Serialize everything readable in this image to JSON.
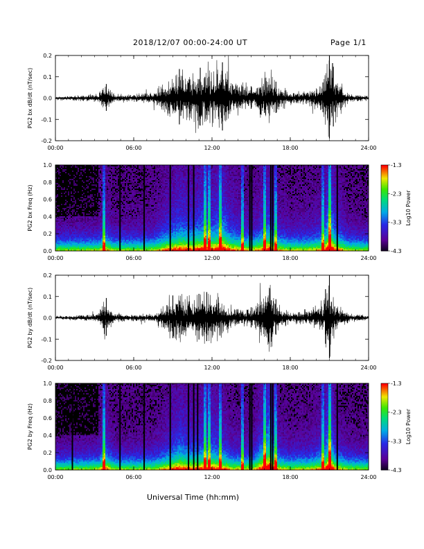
{
  "header": {
    "title": "2018/12/07  00:00-24:00 UT",
    "page": "Page 1/1"
  },
  "xaxis": {
    "label": "Universal Time (hh:mm)",
    "ticks": [
      "00:00",
      "06:00",
      "12:00",
      "18:00",
      "24:00"
    ]
  },
  "chart_data": [
    {
      "type": "line",
      "panel": "bx-dbdt",
      "ylabel": "PG2 bx dB/dt (nT/sec)",
      "ylim": [
        -0.2,
        0.2
      ],
      "yticks": [
        "0.2",
        "0.1",
        "0.0",
        "-0.1",
        "-0.2"
      ],
      "xlim_hours": [
        0,
        24
      ],
      "activity_envelope": {
        "x_hours": [
          0,
          1.5,
          3.3,
          3.8,
          4.5,
          6,
          7.5,
          8.5,
          9.5,
          10.5,
          11.2,
          12,
          12.8,
          13.5,
          14.5,
          15.2,
          16.4,
          17,
          18,
          19.5,
          20.5,
          21,
          21.5,
          22.5,
          24
        ],
        "amplitude": [
          0.01,
          0.012,
          0.02,
          0.07,
          0.02,
          0.018,
          0.03,
          0.09,
          0.13,
          0.11,
          0.14,
          0.12,
          0.16,
          0.09,
          0.06,
          0.05,
          0.14,
          0.06,
          0.03,
          0.04,
          0.07,
          0.2,
          0.1,
          0.02,
          0.012
        ]
      },
      "spikes_hours": [
        3.9,
        9.5,
        11.1,
        12.8,
        15.0,
        16.9,
        20.5,
        21.0,
        21.3
      ]
    },
    {
      "type": "heatmap",
      "panel": "bx-freq",
      "ylabel": "PG2 bx Freq (Hz)",
      "ylim": [
        0.0,
        1.0
      ],
      "yticks": [
        "1.0",
        "0.8",
        "0.6",
        "0.4",
        "0.2",
        "0.0"
      ],
      "colorbar": {
        "label": "Log10 Power",
        "range": [
          -4.3,
          -1.3
        ],
        "ticks": [
          "-1.3",
          "-2.3",
          "-3.3",
          "-4.3"
        ]
      },
      "bright_lines_hours": [
        3.7,
        11.5,
        11.8,
        12.6,
        14.3,
        16.0,
        16.9,
        20.5,
        21.0
      ],
      "gap_lines_hours": [
        4.95,
        6.8,
        8.8,
        10.2,
        10.6,
        14.9,
        15.05,
        16.5,
        16.65,
        21.6
      ]
    },
    {
      "type": "line",
      "panel": "by-dbdt",
      "ylabel": "PG2 by dB/dt (nT/sec)",
      "ylim": [
        -0.2,
        0.2
      ],
      "yticks": [
        "0.2",
        "0.1",
        "0.0",
        "-0.1",
        "-0.2"
      ],
      "xlim_hours": [
        0,
        24
      ],
      "activity_envelope": {
        "x_hours": [
          0,
          1.5,
          3.3,
          3.8,
          4.5,
          6,
          7.5,
          8.5,
          9.5,
          10.5,
          11.2,
          12,
          12.8,
          13.5,
          14.5,
          15.2,
          16.4,
          17,
          18,
          19.5,
          20.5,
          21,
          21.5,
          22.5,
          24
        ],
        "amplitude": [
          0.008,
          0.012,
          0.02,
          0.1,
          0.02,
          0.016,
          0.025,
          0.07,
          0.13,
          0.1,
          0.11,
          0.12,
          0.1,
          0.05,
          0.04,
          0.05,
          0.2,
          0.06,
          0.025,
          0.04,
          0.08,
          0.2,
          0.07,
          0.02,
          0.012
        ]
      },
      "spikes_hours": [
        3.9,
        9.0,
        11.0,
        11.6,
        15.0,
        16.9,
        20.7,
        21.0
      ]
    },
    {
      "type": "heatmap",
      "panel": "by-freq",
      "ylabel": "PG2 by Freq (Hz)",
      "ylim": [
        0.0,
        1.0
      ],
      "yticks": [
        "1.0",
        "0.8",
        "0.6",
        "0.4",
        "0.2",
        "0.0"
      ],
      "colorbar": {
        "label": "Log10 Power",
        "range": [
          -4.3,
          -1.3
        ],
        "ticks": [
          "-1.3",
          "-2.3",
          "-3.3",
          "-4.3"
        ]
      },
      "bright_lines_hours": [
        3.7,
        11.5,
        11.8,
        12.6,
        14.3,
        16.0,
        16.9,
        20.5,
        21.0
      ],
      "gap_lines_hours": [
        1.3,
        4.95,
        6.8,
        8.8,
        10.2,
        10.6,
        10.9,
        14.9,
        15.05,
        16.5,
        16.65,
        21.6
      ]
    }
  ]
}
